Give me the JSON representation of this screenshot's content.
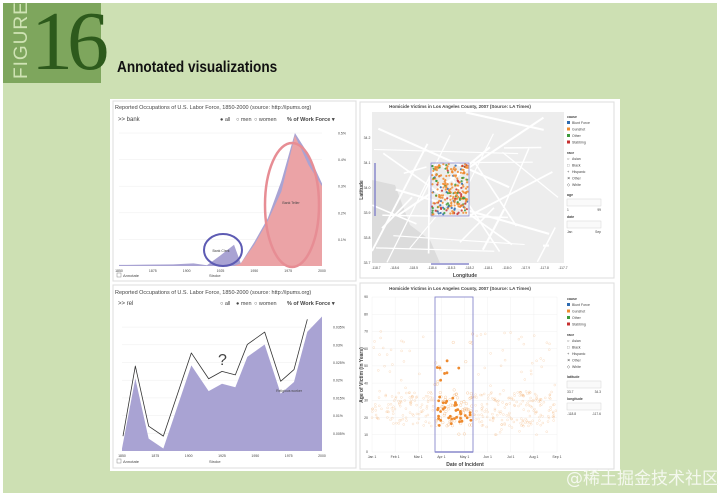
{
  "figure": {
    "word": "FIGURE",
    "number": "16",
    "title": "Annotated visualizations"
  },
  "watermark": "@稀土掘金技术社区",
  "colors": {
    "area_purple": "#a9a3d3",
    "area_pink": "#eba3a6",
    "ellipse_pink": "#e78d94",
    "ellipse_blue": "#5d5bb3",
    "orange": "#ee8a2e",
    "selection": "#8888cc"
  },
  "occupations_top": {
    "title": "Reported Occupations of U.S. Labor Force, 1850-2000 (source: http://ipums.org)",
    "query": ">> bank",
    "radio": [
      "● all",
      "○ men",
      "○ women"
    ],
    "measure": "% of Work Force ▾",
    "y_ticks": [
      "0.5%",
      "0.4%",
      "0.3%",
      "0.2%",
      "0.1%"
    ],
    "x_ticks": [
      "1850",
      "1875",
      "1900",
      "1925",
      "1950",
      "1975",
      "2000"
    ],
    "annotations": [
      "Bank Clerk",
      "Bank Teller"
    ],
    "footer": {
      "annotate": "Annotate",
      "stroke": "Stroke"
    },
    "series": [
      {
        "name": "Bank Clerk",
        "x": [
          1850,
          1870,
          1890,
          1905,
          1915,
          1925,
          1935,
          1940,
          1950,
          1960,
          1970,
          1980,
          1990,
          2000
        ],
        "y": [
          0.004,
          0.005,
          0.006,
          0.01,
          0.003,
          0.04,
          0.08,
          0.01,
          0.09,
          0.18,
          0.32,
          0.5,
          0.42,
          0.31
        ]
      },
      {
        "name": "Bank Teller",
        "x": [
          1850,
          1935,
          1940,
          1950,
          1960,
          1970,
          1980,
          1990,
          2000
        ],
        "y": [
          0,
          0,
          0.01,
          0.08,
          0.17,
          0.28,
          0.49,
          0.38,
          0.3
        ]
      }
    ]
  },
  "occupations_bottom": {
    "title": "Reported Occupations of U.S. Labor Force, 1850-2000 (source: http://ipums.org)",
    "query": ">> rel",
    "radio": [
      "○ all",
      "● men",
      "○ women"
    ],
    "measure": "% of Work Force ▾",
    "y_ticks": [
      "0.035%",
      "0.03%",
      "0.025%",
      "0.02%",
      "0.015%",
      "0.01%",
      "0.005%"
    ],
    "x_ticks": [
      "1850",
      "1875",
      "1900",
      "1925",
      "1950",
      "1975",
      "2000"
    ],
    "annotations": [
      "Religious worker",
      "?"
    ],
    "footer": {
      "annotate": "Annotate",
      "stroke": "Stroke"
    },
    "series": [
      {
        "name": "Religious worker",
        "x": [
          1850,
          1860,
          1870,
          1881,
          1902,
          1915,
          1925,
          1935,
          1944,
          1957,
          1969,
          1979,
          1989,
          2000
        ],
        "y": [
          0.0007,
          0.0205,
          0.0035,
          0.0007,
          0.0242,
          0.0169,
          0.019,
          0.018,
          0.0266,
          0.0301,
          0.0162,
          0.0195,
          0.0337,
          0.038
        ]
      }
    ]
  },
  "homicide_map": {
    "title": "Homicide Victims in Los Angeles County, 2007 (Source: LA Times)",
    "xlabel": "Longitude",
    "ylabel": "Latitude",
    "y_ticks": [
      "34.2",
      "34.1",
      "34.0",
      "33.9",
      "33.8",
      "33.7"
    ],
    "x_ticks": [
      "-118.7",
      "-118.6",
      "-118.5",
      "-118.4",
      "-118.3",
      "-118.2",
      "-118.1",
      "-118.0",
      "-117.9",
      "-117.8",
      "-117.7"
    ],
    "legend": {
      "cause_title": "cause",
      "causes": [
        {
          "label": "Blunt Force",
          "color": "#2e6bb0"
        },
        {
          "label": "Gunshot",
          "color": "#ee8a2e"
        },
        {
          "label": "Other",
          "color": "#3c9a3c"
        },
        {
          "label": "Stabbing",
          "color": "#c62f2f"
        }
      ],
      "race_title": "race",
      "races": [
        {
          "label": "Asian",
          "glyph": "○"
        },
        {
          "label": "Black",
          "glyph": "□"
        },
        {
          "label": "Hispanic",
          "glyph": "+"
        },
        {
          "label": "Other",
          "glyph": "✕"
        },
        {
          "label": "White",
          "glyph": "◇"
        }
      ],
      "age_title": "age",
      "age_range": [
        "1",
        "99"
      ],
      "date_title": "date",
      "date_range": [
        "Jan",
        "Sep"
      ]
    }
  },
  "homicide_scatter": {
    "title": "Homicide Victims in Los Angeles County, 2007 (Source: LA Times)",
    "xlabel": "Date of Incident",
    "ylabel": "Age of Victim (in Years)",
    "y_ticks": [
      "90",
      "80",
      "70",
      "60",
      "50",
      "40",
      "30",
      "20",
      "10",
      "0"
    ],
    "x_ticks": [
      "Jan 1",
      "Feb 1",
      "Mar 1",
      "Apr 1",
      "May 1",
      "Jun 1",
      "Jul 1",
      "Aug 1",
      "Sep 1"
    ],
    "legend": {
      "cause_title": "cause",
      "causes": [
        {
          "label": "Blunt Force",
          "color": "#2e6bb0"
        },
        {
          "label": "Gunshot",
          "color": "#ee8a2e"
        },
        {
          "label": "Other",
          "color": "#3c9a3c"
        },
        {
          "label": "Stabbing",
          "color": "#c62f2f"
        }
      ],
      "race_title": "race",
      "races": [
        {
          "label": "Asian",
          "glyph": "○"
        },
        {
          "label": "Black",
          "glyph": "□"
        },
        {
          "label": "Hispanic",
          "glyph": "+"
        },
        {
          "label": "Other",
          "glyph": "✕"
        },
        {
          "label": "White",
          "glyph": "◇"
        }
      ],
      "lat_title": "latitude",
      "lat_range": [
        "33.7",
        "34.3"
      ],
      "lon_title": "longitude",
      "lon_range": [
        "-118.8",
        "-117.6"
      ]
    }
  }
}
